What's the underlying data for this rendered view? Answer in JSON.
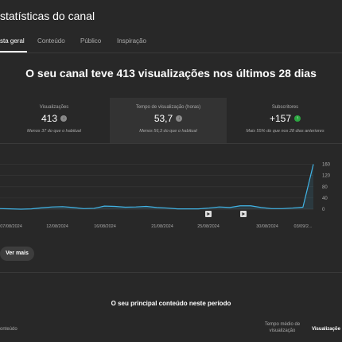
{
  "header": {
    "title": "statísticas do canal"
  },
  "tabs": [
    {
      "label": "sta geral",
      "active": true
    },
    {
      "label": "Conteúdo",
      "active": false
    },
    {
      "label": "Público",
      "active": false
    },
    {
      "label": "Inspiração",
      "active": false
    }
  ],
  "headline": "O seu canal teve 413 visualizações nos últimos 28 dias",
  "cards": [
    {
      "label": "Visualizações",
      "value": "413",
      "trend": "down",
      "note": "Menos 37 do que o habitual"
    },
    {
      "label": "Tempo de visualização (horas)",
      "value": "53,7",
      "trend": "down",
      "note": "Menos 56,3 do que o habitual"
    },
    {
      "label": "Subscritores",
      "value": "+157",
      "trend": "up",
      "note": "Mais 55% do que nos 28 dias anteriores"
    }
  ],
  "icons": {
    "trend_down": "arrow-down-icon",
    "trend_up": "arrow-up-icon",
    "video_marker": "play-icon"
  },
  "colors": {
    "accent": "#41b4e6",
    "trend_up": "#2ba640",
    "background": "#282828"
  },
  "chart_data": {
    "type": "area",
    "x_tick_labels": [
      "07/08/2024",
      "12/08/2024",
      "16/08/2024",
      "21/08/2024",
      "25/08/2024",
      "30/08/2024",
      "03/09/2..."
    ],
    "y_ticks": [
      0,
      40,
      80,
      120,
      160
    ],
    "ylim": [
      0,
      170
    ],
    "values": [
      2,
      1,
      0,
      1,
      5,
      8,
      9,
      6,
      2,
      3,
      11,
      10,
      7,
      8,
      10,
      6,
      4,
      1,
      1,
      1,
      4,
      8,
      6,
      12,
      12,
      6,
      2,
      2,
      4,
      7,
      160
    ],
    "video_markers": [
      2,
      3
    ],
    "grid": true
  },
  "more_button": {
    "label": "Ver mais"
  },
  "top_content": {
    "title": "O seu principal conteúdo neste período",
    "columns": {
      "content": "onteúdo",
      "avg_time": "Tempo médio de visualização",
      "views": "Visualizaçõe"
    }
  }
}
